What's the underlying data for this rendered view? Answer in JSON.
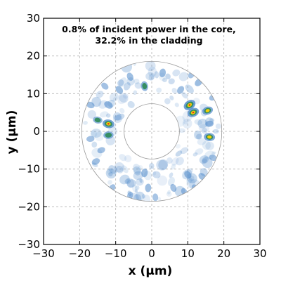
{
  "chart_data": {
    "type": "heatmap",
    "title": "",
    "xlabel": "x (μm)",
    "ylabel": "y (μm)",
    "xlim": [
      -30,
      30
    ],
    "ylim": [
      -30,
      30
    ],
    "xticks": [
      -30,
      -20,
      -10,
      0,
      10,
      20,
      30
    ],
    "yticks": [
      -30,
      -20,
      -10,
      0,
      10,
      20,
      30
    ],
    "grid": true,
    "annotation": [
      "0.8% of incident power in the core,",
      "32.2% in the cladding"
    ],
    "core_radius": 7.5,
    "cladding_radius": 19,
    "colors": {
      "low": "#ffffff",
      "mid": "#4a86c8",
      "high": "#2e8b57",
      "peak": "#ffd400",
      "max": "#e03020",
      "grid": "#b4b4b4",
      "boundary": "#9a9a9a"
    },
    "hotspots": [
      {
        "x": 10.5,
        "y": 7,
        "intensity": 1.0
      },
      {
        "x": 11.5,
        "y": 5,
        "intensity": 0.9
      },
      {
        "x": 15.5,
        "y": 5.5,
        "intensity": 0.75
      },
      {
        "x": 16,
        "y": -1.5,
        "intensity": 0.8
      },
      {
        "x": -12,
        "y": 2,
        "intensity": 0.9
      },
      {
        "x": -12,
        "y": -1,
        "intensity": 0.65
      },
      {
        "x": -15,
        "y": 3,
        "intensity": 0.55
      },
      {
        "x": -2,
        "y": 12,
        "intensity": 0.6
      },
      {
        "x": -12,
        "y": 7,
        "intensity": 0.5
      },
      {
        "x": 13,
        "y": 13,
        "intensity": 0.45
      },
      {
        "x": -6,
        "y": 14.5,
        "intensity": 0.4
      },
      {
        "x": 3,
        "y": 15.5,
        "intensity": 0.45
      },
      {
        "x": -15.5,
        "y": -8,
        "intensity": 0.4
      },
      {
        "x": 14,
        "y": -12,
        "intensity": 0.4
      },
      {
        "x": -1,
        "y": -15,
        "intensity": 0.4
      },
      {
        "x": 6,
        "y": -15,
        "intensity": 0.35
      },
      {
        "x": -11,
        "y": -15,
        "intensity": 0.35
      },
      {
        "x": 10,
        "y": -11.5,
        "intensity": 0.4
      },
      {
        "x": -17,
        "y": 7,
        "intensity": 0.4
      },
      {
        "x": 17,
        "y": 9,
        "intensity": 0.35
      },
      {
        "x": -9,
        "y": 11,
        "intensity": 0.45
      },
      {
        "x": 8,
        "y": 11,
        "intensity": 0.4
      },
      {
        "x": -2,
        "y": -11,
        "intensity": 0.45
      },
      {
        "x": -14,
        "y": -5,
        "intensity": 0.35
      },
      {
        "x": 17,
        "y": -7,
        "intensity": 0.35
      },
      {
        "x": -6,
        "y": -17,
        "intensity": 0.3
      },
      {
        "x": 1,
        "y": -17.5,
        "intensity": 0.3
      },
      {
        "x": 9,
        "y": -16,
        "intensity": 0.3
      },
      {
        "x": 12,
        "y": -15,
        "intensity": 0.3
      },
      {
        "x": -13,
        "y": 12,
        "intensity": 0.35
      },
      {
        "x": 11,
        "y": 15,
        "intensity": 0.3
      },
      {
        "x": 16,
        "y": 2,
        "intensity": 0.4
      },
      {
        "x": -17,
        "y": -2,
        "intensity": 0.35
      }
    ]
  }
}
